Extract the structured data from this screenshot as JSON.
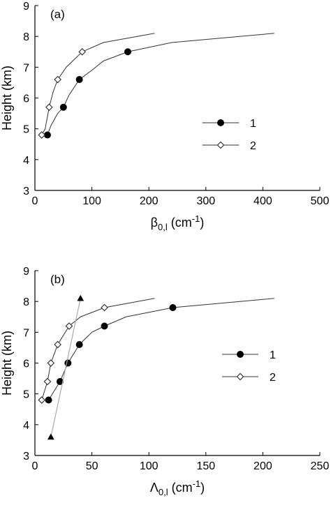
{
  "chart_data": [
    {
      "type": "line",
      "panel_label": "(a)",
      "ylabel": "Height (km)",
      "xlabel": {
        "base": "β",
        "sub": "0,l",
        "units": " (cm",
        "sup": "-1",
        "close": ")"
      },
      "xlim": [
        0,
        500
      ],
      "ylim": [
        3,
        9
      ],
      "xticks": [
        0,
        100,
        200,
        300,
        400,
        500
      ],
      "yticks": [
        3,
        4,
        5,
        6,
        7,
        8,
        9
      ],
      "legend_placement": "right-middle",
      "series": [
        {
          "name": "1",
          "marker": "filled-circle",
          "points": [
            [
              22,
              4.8
            ],
            [
              50,
              5.7
            ],
            [
              78,
              6.6
            ],
            [
              163,
              7.5
            ]
          ],
          "line": [
            [
              22,
              4.8
            ],
            [
              28,
              5.1
            ],
            [
              40,
              5.5
            ],
            [
              50,
              5.7
            ],
            [
              60,
              6.1
            ],
            [
              78,
              6.6
            ],
            [
              100,
              6.9
            ],
            [
              120,
              7.2
            ],
            [
              163,
              7.5
            ],
            [
              240,
              7.8
            ],
            [
              420,
              8.1
            ]
          ]
        },
        {
          "name": "2",
          "marker": "open-diamond",
          "points": [
            [
              12,
              4.8
            ],
            [
              25,
              5.7
            ],
            [
              40,
              6.6
            ],
            [
              83,
              7.5
            ]
          ],
          "line": [
            [
              12,
              4.8
            ],
            [
              18,
              5.0
            ],
            [
              25,
              5.7
            ],
            [
              32,
              6.2
            ],
            [
              40,
              6.6
            ],
            [
              55,
              7.0
            ],
            [
              83,
              7.5
            ],
            [
              120,
              7.8
            ],
            [
              210,
              8.1
            ]
          ]
        }
      ]
    },
    {
      "type": "line",
      "panel_label": "(b)",
      "ylabel": "Height (km)",
      "xlabel": {
        "base": "Λ",
        "sub": "0,l",
        "units": " (cm",
        "sup": "-1",
        "close": ")"
      },
      "xlim": [
        0,
        250
      ],
      "ylim": [
        3,
        9
      ],
      "xticks": [
        0,
        50,
        100,
        150,
        200,
        250
      ],
      "yticks": [
        3,
        4,
        5,
        6,
        7,
        8,
        9
      ],
      "legend_placement": "right-middle",
      "series": [
        {
          "name": "1",
          "marker": "filled-circle",
          "points": [
            [
              12,
              4.8
            ],
            [
              22,
              5.4
            ],
            [
              29,
              6.0
            ],
            [
              39,
              6.6
            ],
            [
              61,
              7.2
            ],
            [
              121,
              7.8
            ]
          ],
          "line": [
            [
              12,
              4.8
            ],
            [
              22,
              5.4
            ],
            [
              29,
              6.0
            ],
            [
              39,
              6.6
            ],
            [
              50,
              7.0
            ],
            [
              61,
              7.2
            ],
            [
              80,
              7.5
            ],
            [
              121,
              7.8
            ],
            [
              210,
              8.1
            ]
          ]
        },
        {
          "name": "2",
          "marker": "open-diamond",
          "points": [
            [
              6,
              4.8
            ],
            [
              11,
              5.4
            ],
            [
              14,
              6.0
            ],
            [
              20,
              6.6
            ],
            [
              30,
              7.2
            ],
            [
              61,
              7.8
            ]
          ],
          "line": [
            [
              6,
              4.8
            ],
            [
              11,
              5.4
            ],
            [
              14,
              6.0
            ],
            [
              20,
              6.6
            ],
            [
              30,
              7.2
            ],
            [
              40,
              7.5
            ],
            [
              61,
              7.8
            ],
            [
              105,
              8.1
            ]
          ]
        },
        {
          "marker": "filled-triangle",
          "color": "#aaaaaa",
          "points": [
            [
              14,
              3.6
            ],
            [
              40,
              8.1
            ]
          ],
          "line": [
            [
              14,
              3.6
            ],
            [
              40,
              8.1
            ]
          ]
        }
      ]
    }
  ]
}
